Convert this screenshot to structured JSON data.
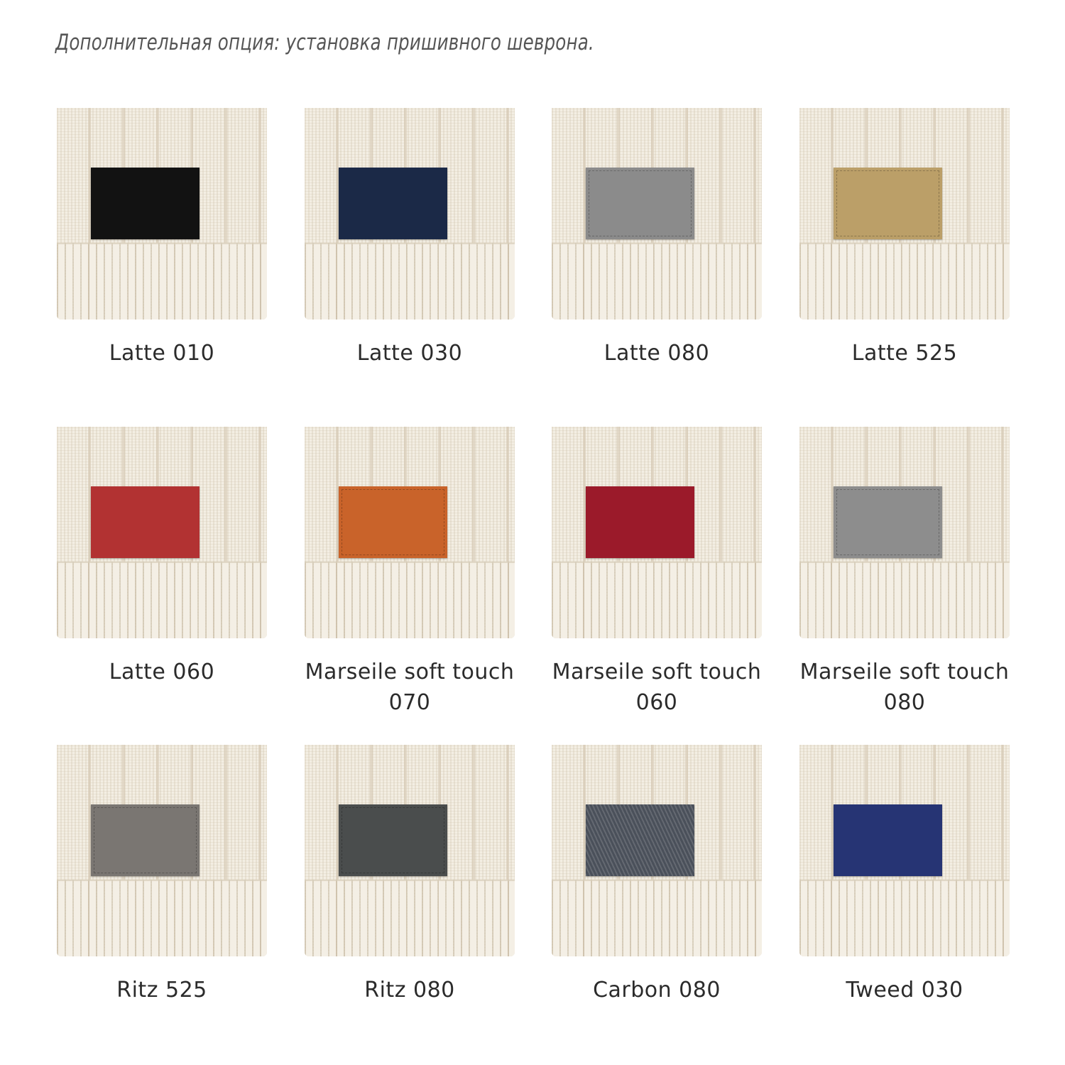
{
  "title": "Дополнительная опция: установка пришивного шеврона.",
  "swatches": [
    {
      "name": "Latte 010",
      "lines": [
        "Latte 010"
      ],
      "color": "#121212"
    },
    {
      "name": "Latte 030",
      "lines": [
        "Latte 030"
      ],
      "color": "#1b2947"
    },
    {
      "name": "Latte 080",
      "lines": [
        "Latte 080"
      ],
      "color": "#8b8b8b"
    },
    {
      "name": "Latte 525",
      "lines": [
        "Latte 525"
      ],
      "color": "#bb9f68"
    },
    {
      "name": "Latte 060",
      "lines": [
        "Latte 060"
      ],
      "color": "#b23232"
    },
    {
      "name": "Marseile soft touch 070",
      "lines": [
        "Marseile soft touch",
        "070"
      ],
      "color": "#c9632a"
    },
    {
      "name": "Marseile soft touch 060",
      "lines": [
        "Marseile soft touch",
        "060"
      ],
      "color": "#9b1a2a"
    },
    {
      "name": "Marseile soft touch 080",
      "lines": [
        "Marseile soft touch",
        "080"
      ],
      "color": "#8d8d8d"
    },
    {
      "name": "Ritz 525",
      "lines": [
        "Ritz 525"
      ],
      "color": "#7a7672"
    },
    {
      "name": "Ritz 080",
      "lines": [
        "Ritz 080"
      ],
      "color": "#4a4d4d"
    },
    {
      "name": "Carbon 080",
      "lines": [
        "Carbon 080"
      ],
      "color": "#4a505a"
    },
    {
      "name": "Tweed 030",
      "lines": [
        "Tweed 030"
      ],
      "color": "#263474"
    }
  ]
}
